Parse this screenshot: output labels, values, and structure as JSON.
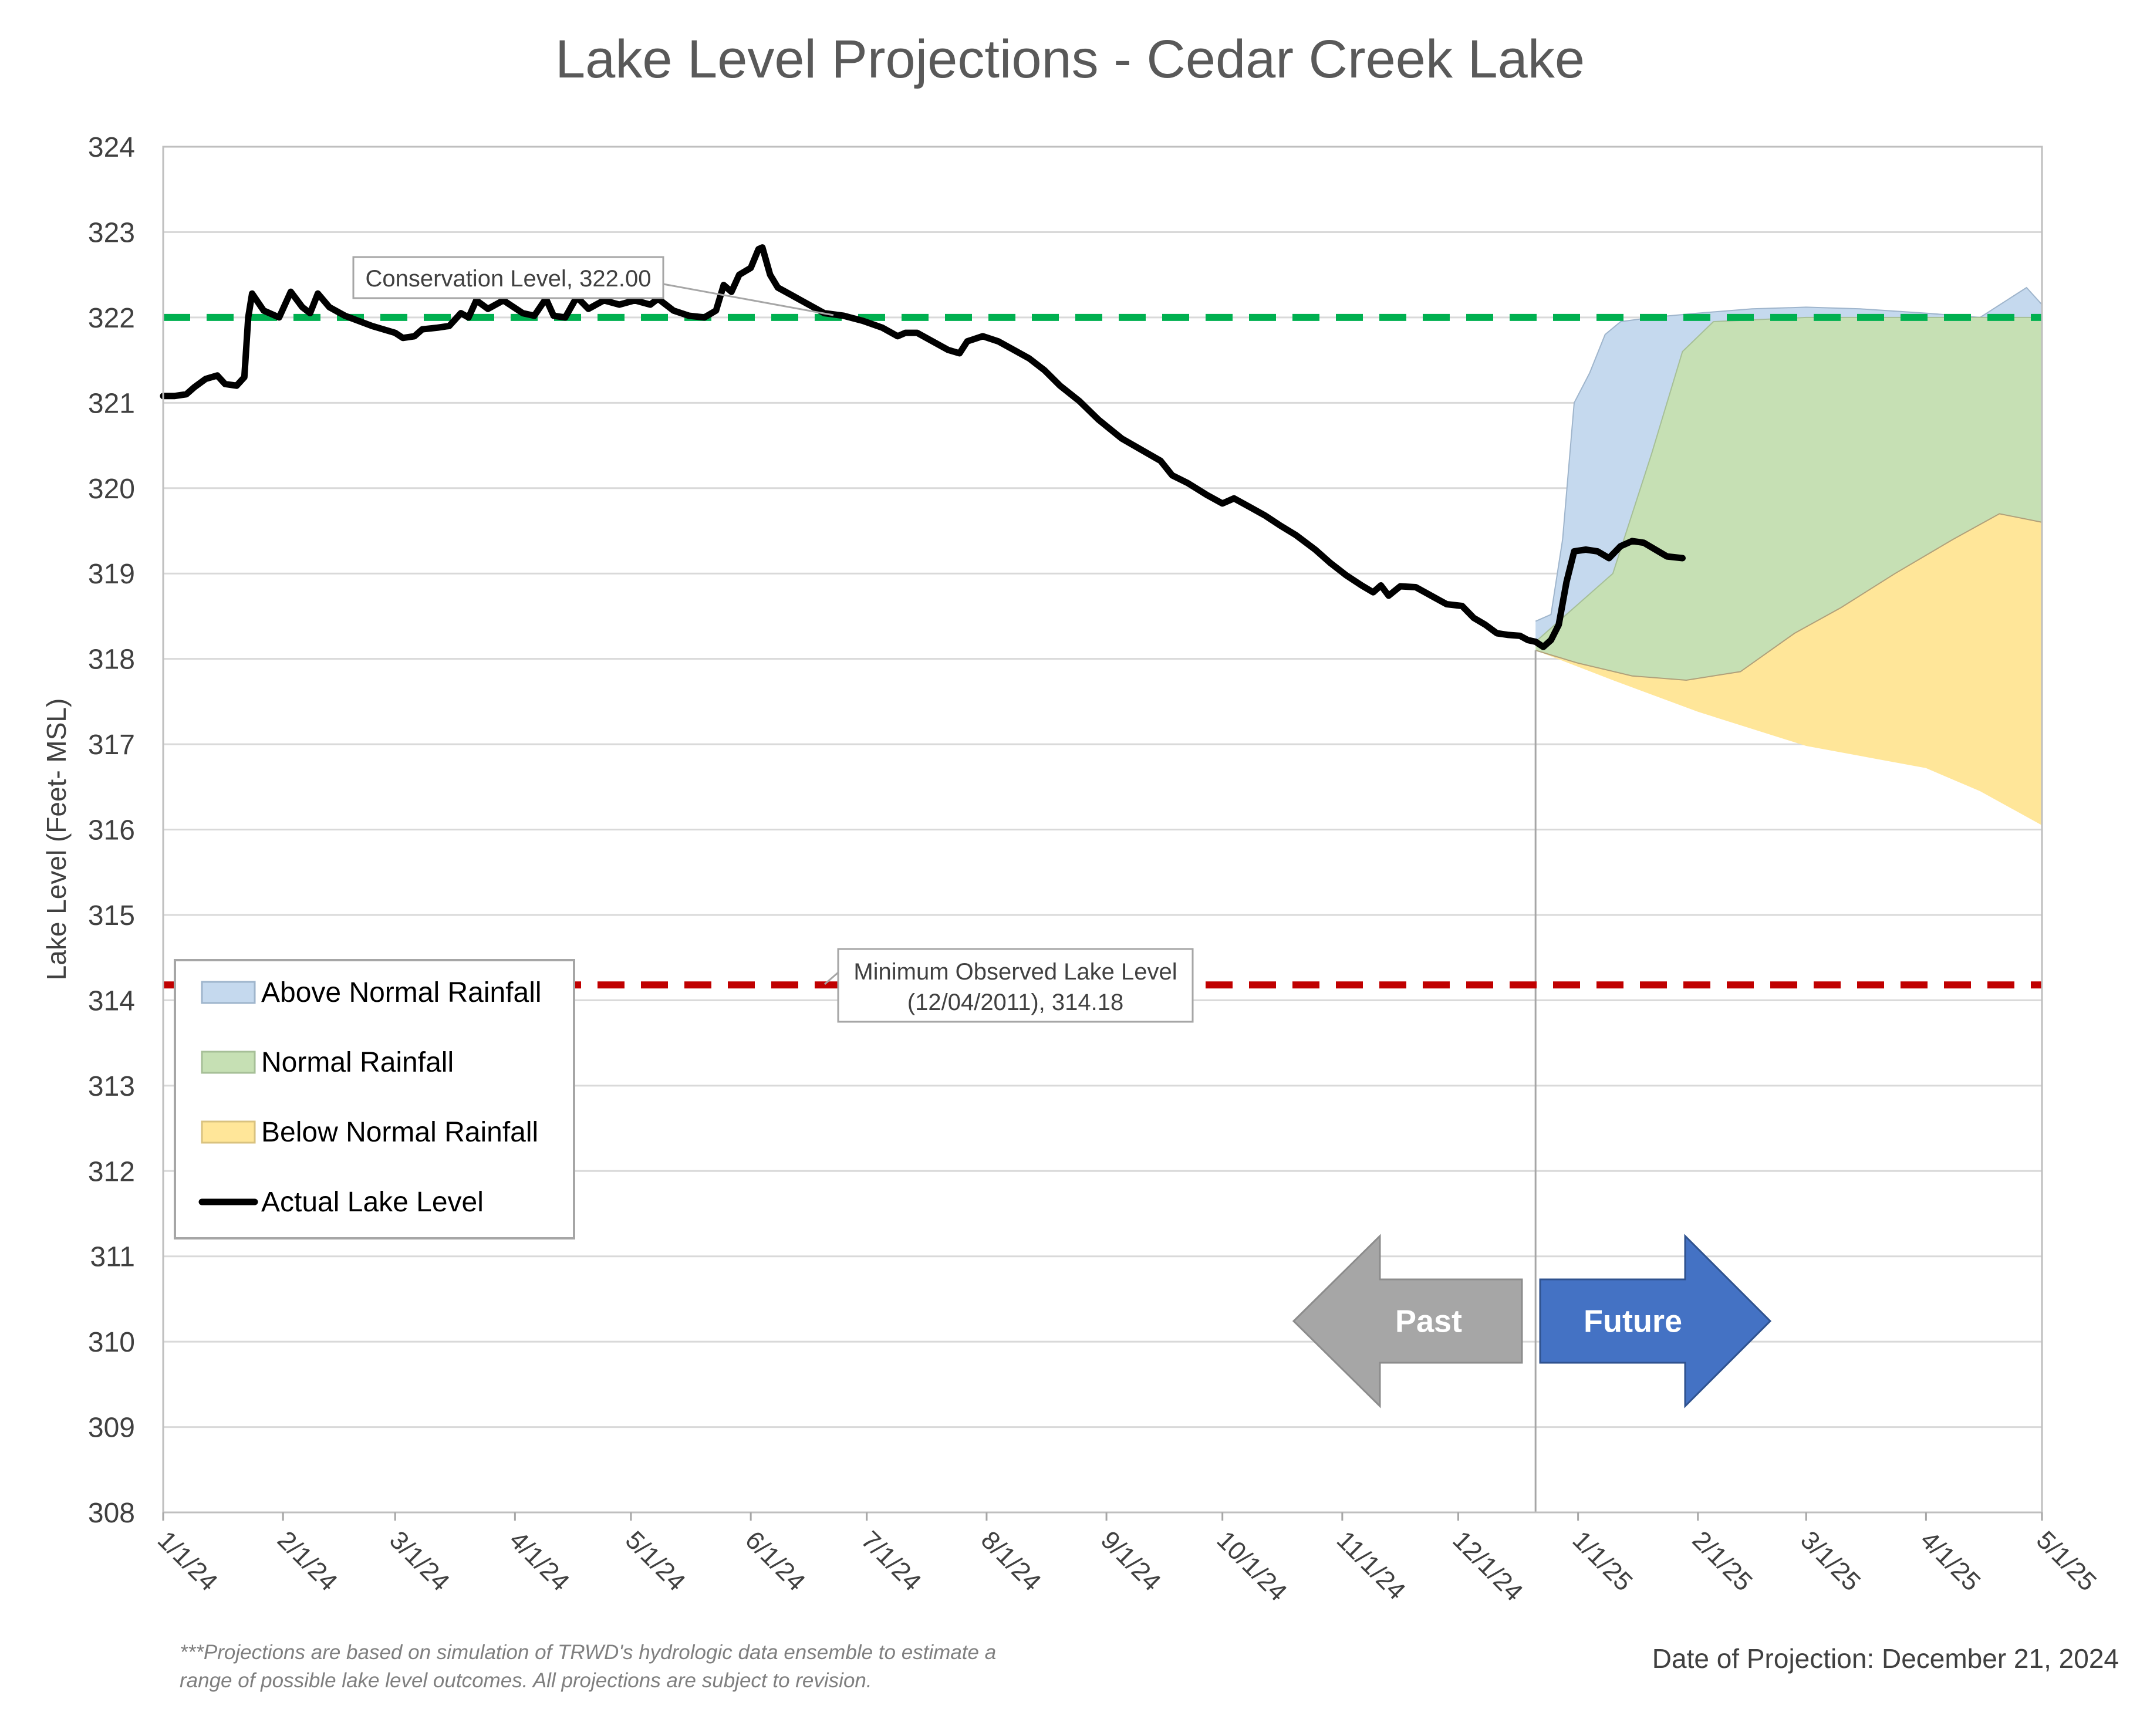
{
  "chart_data": {
    "type": "area",
    "title": "Lake Level Projections - Cedar Creek Lake",
    "ylabel": "Lake Level (Feet- MSL)",
    "xlabel": "",
    "ylim": [
      308,
      324
    ],
    "yticks": [
      "308",
      "309",
      "310",
      "311",
      "312",
      "313",
      "314",
      "315",
      "316",
      "317",
      "318",
      "319",
      "320",
      "321",
      "322",
      "323",
      "324"
    ],
    "xlim": [
      "2024-01-01",
      "2025-05-01"
    ],
    "xticks": [
      {
        "label": "1/1/24",
        "date": "2024-01-01"
      },
      {
        "label": "2/1/24",
        "date": "2024-02-01"
      },
      {
        "label": "3/1/24",
        "date": "2024-03-01"
      },
      {
        "label": "4/1/24",
        "date": "2024-04-01"
      },
      {
        "label": "5/1/24",
        "date": "2024-05-01"
      },
      {
        "label": "6/1/24",
        "date": "2024-06-01"
      },
      {
        "label": "7/1/24",
        "date": "2024-07-01"
      },
      {
        "label": "8/1/24",
        "date": "2024-08-01"
      },
      {
        "label": "9/1/24",
        "date": "2024-09-01"
      },
      {
        "label": "10/1/24",
        "date": "2024-10-01"
      },
      {
        "label": "11/1/24",
        "date": "2024-11-01"
      },
      {
        "label": "12/1/24",
        "date": "2024-12-01"
      },
      {
        "label": "1/1/25",
        "date": "2025-01-01"
      },
      {
        "label": "2/1/25",
        "date": "2025-02-01"
      },
      {
        "label": "3/1/25",
        "date": "2025-03-01"
      },
      {
        "label": "4/1/25",
        "date": "2025-04-01"
      },
      {
        "label": "5/1/25",
        "date": "2025-05-01"
      }
    ],
    "grid": "horizontal",
    "legend_position": "bottom-left",
    "legend": [
      {
        "label": "Above Normal Rainfall",
        "kind": "area",
        "color": "#c5d9ee",
        "stroke": "#9fb5cc"
      },
      {
        "label": "Normal Rainfall",
        "kind": "area",
        "color": "#c6e0b4",
        "stroke": "#a6bf97"
      },
      {
        "label": "Below Normal Rainfall",
        "kind": "area",
        "color": "#ffe699",
        "stroke": "#d9c27f"
      },
      {
        "label": "Actual Lake Level",
        "kind": "line",
        "color": "#000000"
      }
    ],
    "reference_lines": [
      {
        "name": "Conservation Level",
        "value": 322.0,
        "color": "#00b050",
        "label": "Conservation Level, 322.00"
      },
      {
        "name": "Minimum Observed Lake Level",
        "value": 314.18,
        "color": "#c00000",
        "label_line1": "Minimum Observed Lake Level",
        "label_line2": "(12/04/2011), 314.18"
      }
    ],
    "projection_start": "2024-12-21",
    "series": [
      {
        "name": "Actual Lake Level",
        "kind": "line",
        "color": "#000000",
        "points": [
          [
            "2024-01-01",
            321.08
          ],
          [
            "2024-01-04",
            321.08
          ],
          [
            "2024-01-07",
            321.1
          ],
          [
            "2024-01-09",
            321.18
          ],
          [
            "2024-01-12",
            321.28
          ],
          [
            "2024-01-15",
            321.32
          ],
          [
            "2024-01-17",
            321.22
          ],
          [
            "2024-01-20",
            321.2
          ],
          [
            "2024-01-22",
            321.3
          ],
          [
            "2024-01-23",
            322.0
          ],
          [
            "2024-01-24",
            322.28
          ],
          [
            "2024-01-27",
            322.08
          ],
          [
            "2024-01-31",
            322.0
          ],
          [
            "2024-02-03",
            322.3
          ],
          [
            "2024-02-06",
            322.12
          ],
          [
            "2024-02-08",
            322.05
          ],
          [
            "2024-02-10",
            322.28
          ],
          [
            "2024-02-13",
            322.12
          ],
          [
            "2024-02-17",
            322.02
          ],
          [
            "2024-02-24",
            321.9
          ],
          [
            "2024-03-01",
            321.82
          ],
          [
            "2024-03-03",
            321.76
          ],
          [
            "2024-03-06",
            321.78
          ],
          [
            "2024-03-08",
            321.86
          ],
          [
            "2024-03-12",
            321.88
          ],
          [
            "2024-03-15",
            321.9
          ],
          [
            "2024-03-18",
            322.05
          ],
          [
            "2024-03-20",
            322.0
          ],
          [
            "2024-03-22",
            322.2
          ],
          [
            "2024-03-25",
            322.1
          ],
          [
            "2024-03-29",
            322.2
          ],
          [
            "2024-04-03",
            322.05
          ],
          [
            "2024-04-06",
            322.02
          ],
          [
            "2024-04-09",
            322.22
          ],
          [
            "2024-04-11",
            322.02
          ],
          [
            "2024-04-14",
            322.0
          ],
          [
            "2024-04-17",
            322.24
          ],
          [
            "2024-04-20",
            322.1
          ],
          [
            "2024-04-24",
            322.2
          ],
          [
            "2024-04-28",
            322.15
          ],
          [
            "2024-05-02",
            322.2
          ],
          [
            "2024-05-06",
            322.15
          ],
          [
            "2024-05-08",
            322.22
          ],
          [
            "2024-05-12",
            322.08
          ],
          [
            "2024-05-16",
            322.02
          ],
          [
            "2024-05-20",
            322.0
          ],
          [
            "2024-05-23",
            322.08
          ],
          [
            "2024-05-25",
            322.38
          ],
          [
            "2024-05-27",
            322.3
          ],
          [
            "2024-05-29",
            322.5
          ],
          [
            "2024-06-01",
            322.58
          ],
          [
            "2024-06-03",
            322.8
          ],
          [
            "2024-06-04",
            322.82
          ],
          [
            "2024-06-06",
            322.5
          ],
          [
            "2024-06-08",
            322.35
          ],
          [
            "2024-06-12",
            322.25
          ],
          [
            "2024-06-16",
            322.15
          ],
          [
            "2024-06-20",
            322.05
          ],
          [
            "2024-06-25",
            322.02
          ],
          [
            "2024-06-30",
            321.96
          ],
          [
            "2024-07-05",
            321.88
          ],
          [
            "2024-07-09",
            321.78
          ],
          [
            "2024-07-11",
            321.82
          ],
          [
            "2024-07-14",
            321.82
          ],
          [
            "2024-07-18",
            321.72
          ],
          [
            "2024-07-22",
            321.62
          ],
          [
            "2024-07-25",
            321.58
          ],
          [
            "2024-07-27",
            321.72
          ],
          [
            "2024-07-31",
            321.78
          ],
          [
            "2024-08-04",
            321.72
          ],
          [
            "2024-08-08",
            321.62
          ],
          [
            "2024-08-12",
            321.52
          ],
          [
            "2024-08-16",
            321.38
          ],
          [
            "2024-08-20",
            321.2
          ],
          [
            "2024-08-25",
            321.02
          ],
          [
            "2024-08-30",
            320.8
          ],
          [
            "2024-09-05",
            320.58
          ],
          [
            "2024-09-10",
            320.45
          ],
          [
            "2024-09-15",
            320.32
          ],
          [
            "2024-09-18",
            320.15
          ],
          [
            "2024-09-22",
            320.06
          ],
          [
            "2024-09-27",
            319.92
          ],
          [
            "2024-10-01",
            319.82
          ],
          [
            "2024-10-04",
            319.88
          ],
          [
            "2024-10-08",
            319.78
          ],
          [
            "2024-10-12",
            319.68
          ],
          [
            "2024-10-16",
            319.56
          ],
          [
            "2024-10-20",
            319.45
          ],
          [
            "2024-10-25",
            319.28
          ],
          [
            "2024-10-29",
            319.12
          ],
          [
            "2024-11-02",
            318.98
          ],
          [
            "2024-11-06",
            318.86
          ],
          [
            "2024-11-09",
            318.78
          ],
          [
            "2024-11-11",
            318.86
          ],
          [
            "2024-11-13",
            318.74
          ],
          [
            "2024-11-16",
            318.85
          ],
          [
            "2024-11-20",
            318.84
          ],
          [
            "2024-11-24",
            318.74
          ],
          [
            "2024-11-28",
            318.64
          ],
          [
            "2024-12-02",
            318.62
          ],
          [
            "2024-12-05",
            318.48
          ],
          [
            "2024-12-08",
            318.4
          ],
          [
            "2024-12-11",
            318.3
          ],
          [
            "2024-12-14",
            318.28
          ],
          [
            "2024-12-17",
            318.27
          ],
          [
            "2024-12-19",
            318.22
          ],
          [
            "2024-12-21",
            318.2
          ],
          [
            "2024-12-23",
            318.14
          ],
          [
            "2024-12-25",
            318.22
          ],
          [
            "2024-12-27",
            318.4
          ],
          [
            "2024-12-29",
            318.9
          ],
          [
            "2024-12-31",
            319.26
          ],
          [
            "2025-01-03",
            319.28
          ],
          [
            "2025-01-06",
            319.26
          ],
          [
            "2025-01-09",
            319.18
          ],
          [
            "2025-01-12",
            319.32
          ],
          [
            "2025-01-15",
            319.38
          ],
          [
            "2025-01-18",
            319.36
          ],
          [
            "2025-01-21",
            319.28
          ],
          [
            "2025-01-24",
            319.2
          ],
          [
            "2025-01-28",
            319.18
          ]
        ]
      },
      {
        "name": "Above Normal Rainfall",
        "kind": "area",
        "color": "#c5d9ee",
        "upper": [
          [
            "2024-12-21",
            318.44
          ],
          [
            "2024-12-25",
            318.52
          ],
          [
            "2024-12-28",
            319.4
          ],
          [
            "2024-12-31",
            321.0
          ],
          [
            "2025-01-04",
            321.35
          ],
          [
            "2025-01-08",
            321.8
          ],
          [
            "2025-01-12",
            321.95
          ],
          [
            "2025-01-20",
            322.0
          ],
          [
            "2025-02-01",
            322.05
          ],
          [
            "2025-02-15",
            322.1
          ],
          [
            "2025-03-01",
            322.12
          ],
          [
            "2025-03-15",
            322.1
          ],
          [
            "2025-04-01",
            322.05
          ],
          [
            "2025-04-15",
            322.0
          ],
          [
            "2025-04-27",
            322.35
          ],
          [
            "2025-05-01",
            322.15
          ]
        ],
        "lower": [
          [
            "2024-12-21",
            318.2
          ],
          [
            "2024-12-31",
            318.6
          ],
          [
            "2025-01-10",
            319.0
          ],
          [
            "2025-01-20",
            320.4
          ],
          [
            "2025-01-28",
            321.6
          ],
          [
            "2025-02-05",
            321.95
          ],
          [
            "2025-03-01",
            322.0
          ],
          [
            "2025-05-01",
            322.0
          ]
        ]
      },
      {
        "name": "Normal Rainfall",
        "kind": "area",
        "color": "#c6e0b4",
        "upper": [
          [
            "2024-12-21",
            318.2
          ],
          [
            "2024-12-31",
            318.6
          ],
          [
            "2025-01-10",
            319.0
          ],
          [
            "2025-01-20",
            320.4
          ],
          [
            "2025-01-28",
            321.6
          ],
          [
            "2025-02-05",
            321.95
          ],
          [
            "2025-03-01",
            322.0
          ],
          [
            "2025-05-01",
            322.0
          ]
        ],
        "lower": [
          [
            "2024-12-21",
            318.1
          ],
          [
            "2025-01-01",
            317.95
          ],
          [
            "2025-01-15",
            317.8
          ],
          [
            "2025-01-29",
            317.75
          ],
          [
            "2025-02-12",
            317.85
          ],
          [
            "2025-02-26",
            318.3
          ],
          [
            "2025-03-10",
            318.6
          ],
          [
            "2025-03-24",
            319.0
          ],
          [
            "2025-04-08",
            319.4
          ],
          [
            "2025-04-20",
            319.7
          ],
          [
            "2025-05-01",
            319.6
          ]
        ]
      },
      {
        "name": "Below Normal Rainfall",
        "kind": "area",
        "color": "#ffe699",
        "upper": [
          [
            "2024-12-21",
            318.1
          ],
          [
            "2025-01-01",
            317.95
          ],
          [
            "2025-01-15",
            317.8
          ],
          [
            "2025-01-29",
            317.75
          ],
          [
            "2025-02-12",
            317.85
          ],
          [
            "2025-02-26",
            318.3
          ],
          [
            "2025-03-10",
            318.6
          ],
          [
            "2025-03-24",
            319.0
          ],
          [
            "2025-04-08",
            319.4
          ],
          [
            "2025-04-20",
            319.7
          ],
          [
            "2025-05-01",
            319.6
          ]
        ],
        "lower": [
          [
            "2024-12-21",
            318.1
          ],
          [
            "2025-01-10",
            317.75
          ],
          [
            "2025-02-01",
            317.38
          ],
          [
            "2025-03-01",
            316.98
          ],
          [
            "2025-04-01",
            316.72
          ],
          [
            "2025-04-15",
            316.45
          ],
          [
            "2025-05-01",
            316.05
          ]
        ]
      }
    ],
    "annotations": {
      "past_label": "Past",
      "future_label": "Future",
      "past_color": "#a6a6a6",
      "future_color": "#4472c4"
    },
    "footnote_line1": "***Projections are based on simulation of TRWD's hydrologic data ensemble to estimate a",
    "footnote_line2": "range of possible lake level outcomes.  All projections are subject to revision.",
    "projection_date": "Date of Projection: December 21, 2024"
  }
}
